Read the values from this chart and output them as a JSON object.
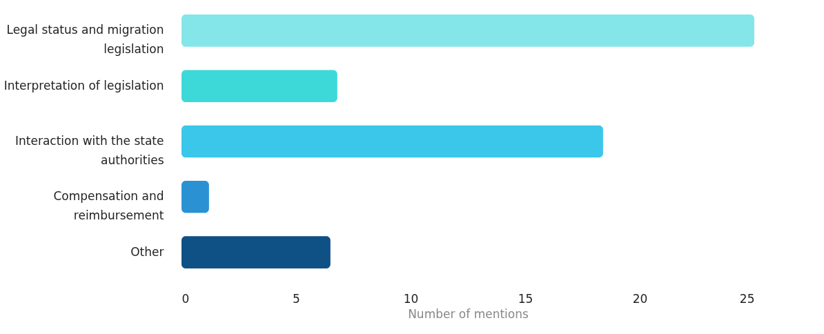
{
  "chart_data": {
    "type": "bar",
    "orientation": "horizontal",
    "categories": [
      "Legal status and migration\nlegislation",
      "Interpretation of legislation",
      "Interaction with the state\nauthorities",
      "Compensation and\nreimbursement",
      "Other"
    ],
    "values": [
      25,
      6.8,
      18.4,
      1.2,
      6.5
    ],
    "colors": [
      "#84e6e8",
      "#3dd9d9",
      "#3ac7ea",
      "#2a91d3",
      "#0f5085"
    ],
    "xlim": [
      0,
      25
    ],
    "xticks": [
      0,
      5,
      10,
      15,
      20,
      25
    ],
    "xlabel": "Number of mentions",
    "grid": false
  }
}
